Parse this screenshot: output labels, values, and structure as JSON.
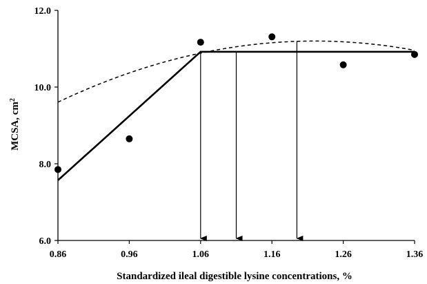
{
  "chart_data": {
    "type": "scatter",
    "xlabel": "Standardized ileal digestible lysine concentrations, %",
    "ylabel_main": "MCSA, cm",
    "ylabel_sup": "2",
    "xlim": [
      0.86,
      1.36
    ],
    "ylim": [
      6.0,
      12.0
    ],
    "x_ticks": [
      0.86,
      0.96,
      1.06,
      1.16,
      1.26,
      1.36
    ],
    "x_tick_labels": [
      "0.86",
      "0.96",
      "1.06",
      "1.16",
      "1.26",
      "1.36"
    ],
    "y_ticks": [
      6.0,
      8.0,
      10.0,
      12.0
    ],
    "y_tick_labels": [
      "6.0",
      "8.0",
      "10.0",
      "12.0"
    ],
    "points": [
      {
        "x": 0.86,
        "y": 7.85
      },
      {
        "x": 0.96,
        "y": 8.65
      },
      {
        "x": 1.06,
        "y": 11.17
      },
      {
        "x": 1.16,
        "y": 11.31
      },
      {
        "x": 1.26,
        "y": 10.58
      },
      {
        "x": 1.36,
        "y": 10.85
      }
    ],
    "broken_line": [
      {
        "x": 0.86,
        "y": 7.57
      },
      {
        "x": 1.06,
        "y": 10.92
      },
      {
        "x": 1.36,
        "y": 10.92
      }
    ],
    "quadratic_curve": {
      "x_start": 0.86,
      "x_end": 1.36,
      "peak_x": 1.22,
      "peak_y": 11.2,
      "curvature": 12.3
    },
    "arrows": [
      {
        "x": 1.06,
        "y_top": 10.92
      },
      {
        "x": 1.11,
        "y_top": 10.92
      },
      {
        "x": 1.195,
        "y_top": 11.2
      }
    ],
    "grid": false,
    "legend": "none"
  }
}
